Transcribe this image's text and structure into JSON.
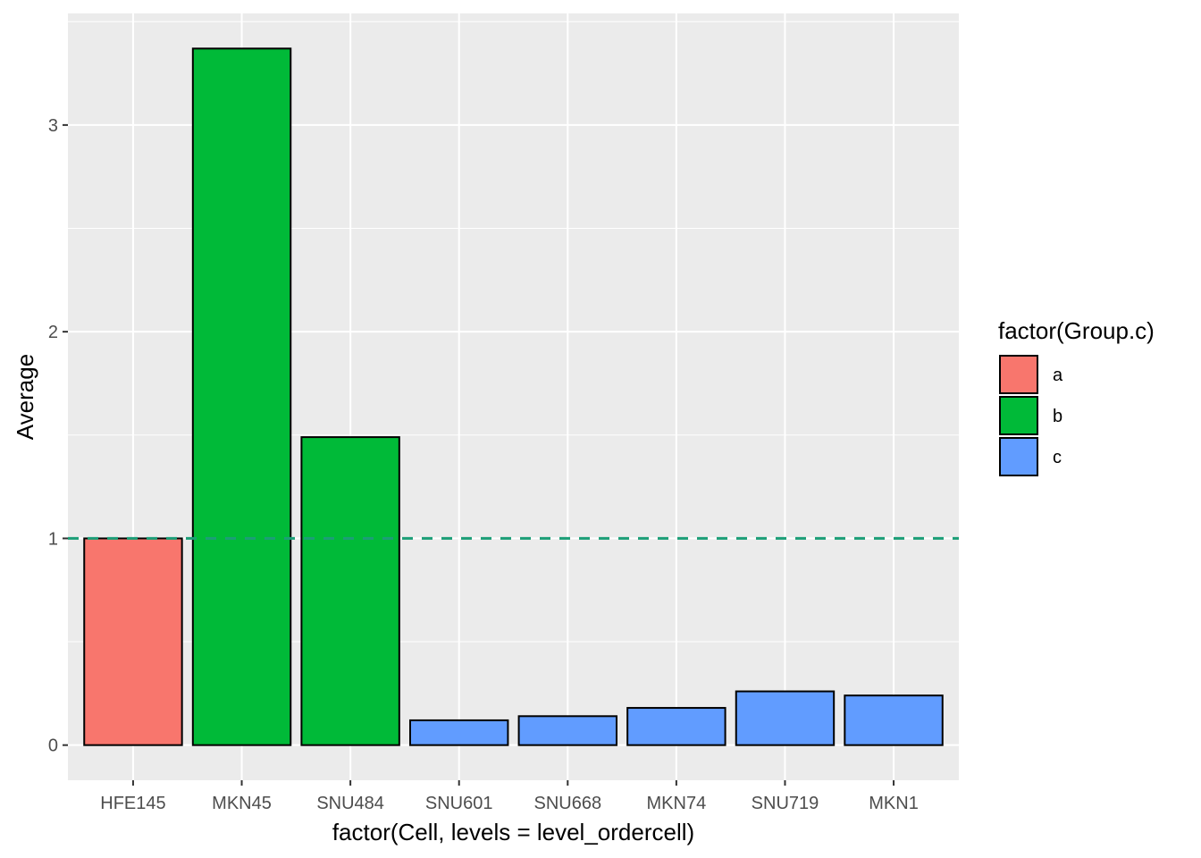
{
  "chart_data": {
    "type": "bar",
    "categories": [
      "HFE145",
      "MKN45",
      "SNU484",
      "SNU601",
      "SNU668",
      "MKN74",
      "SNU719",
      "MKN1"
    ],
    "values": [
      1.0,
      3.37,
      1.49,
      0.12,
      0.14,
      0.18,
      0.26,
      0.24
    ],
    "groups": [
      "a",
      "b",
      "b",
      "c",
      "c",
      "c",
      "c",
      "c"
    ],
    "xlabel": "factor(Cell, levels = level_ordercell)",
    "ylabel": "Average",
    "ylim": [
      -0.17,
      3.54
    ],
    "yticks": [
      0,
      1,
      2,
      3
    ],
    "yticklabels": [
      "0",
      "1",
      "2",
      "3"
    ],
    "grid": true,
    "reference_line": {
      "y": 1,
      "style": "dashed",
      "color": "#1B9E77"
    },
    "legend": {
      "title": "factor(Group.c)",
      "position": "right",
      "entries": [
        {
          "label": "a",
          "color": "#F8766D"
        },
        {
          "label": "b",
          "color": "#00BA38"
        },
        {
          "label": "c",
          "color": "#619CFF"
        }
      ]
    },
    "panel_background": "#EBEBEB"
  }
}
